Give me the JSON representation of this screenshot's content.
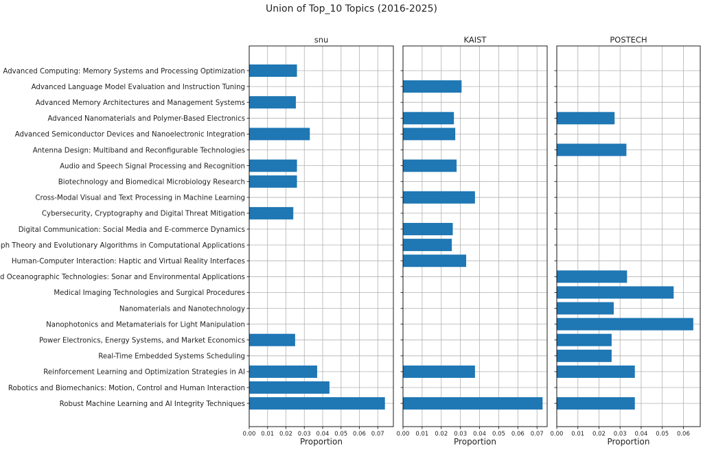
{
  "chart_data": {
    "type": "bar",
    "orientation": "horizontal",
    "title": "Union of Top_10 Topics (2016-2025)",
    "xlabel": "Proportion",
    "grid": true,
    "bar_color": "#1f77b4",
    "categories": [
      "Advanced Computing: Memory Systems and Processing Optimization",
      "Advanced Language Model Evaluation and Instruction Tuning",
      "Advanced Memory Architectures and Management Systems",
      "Advanced Nanomaterials and Polymer-Based Electronics",
      "Advanced Semiconductor Devices and Nanoelectronic Integration",
      "Antenna Design: Multiband and Reconfigurable Technologies",
      "Audio and Speech Signal Processing and Recognition",
      "Biotechnology and Biomedical Microbiology Research",
      "Cross-Modal Visual and Text Processing in Machine Learning",
      "Cybersecurity, Cryptography and Digital Threat Mitigation",
      "Digital Communication: Social Media and E-commerce Dynamics",
      "Graph Theory and Evolutionary Algorithms in Computational Applications",
      "Human-Computer Interaction: Haptic and Virtual Reality Interfaces",
      "Marine and Oceanographic Technologies: Sonar and Environmental Applications",
      "Medical Imaging Technologies and Surgical Procedures",
      "Nanomaterials and Nanotechnology",
      "Nanophotonics and Metamaterials for Light Manipulation",
      "Power Electronics, Energy Systems, and Market Economics",
      "Real-Time Embedded Systems Scheduling",
      "Reinforcement Learning and Optimization Strategies in AI",
      "Robotics and Biomechanics: Motion, Control and Human Interaction",
      "Robust Machine Learning and AI Integrity Techniques"
    ],
    "panels": [
      {
        "name": "snu",
        "xlim": [
          0,
          0.0785
        ],
        "ticks": [
          "0.00",
          "0.01",
          "0.02",
          "0.03",
          "0.04",
          "0.05",
          "0.06",
          "0.07"
        ],
        "values": [
          0.026,
          0,
          0.0254,
          0,
          0.033,
          0,
          0.026,
          0.026,
          0,
          0.024,
          0,
          0,
          0,
          0,
          0,
          0,
          0,
          0.025,
          0,
          0.037,
          0.0437,
          0.0739
        ]
      },
      {
        "name": "KAIST",
        "xlim": [
          0,
          0.0753
        ],
        "ticks": [
          "0.00",
          "0.01",
          "0.02",
          "0.03",
          "0.04",
          "0.05",
          "0.06",
          "0.07"
        ],
        "values": [
          0,
          0.0306,
          0,
          0.0266,
          0.0273,
          0,
          0.028,
          0,
          0.0376,
          0,
          0.026,
          0.0255,
          0.033,
          0,
          0,
          0,
          0,
          0,
          0,
          0.0376,
          0,
          0.0729
        ]
      },
      {
        "name": "POSTECH",
        "xlim": [
          0,
          0.068
        ],
        "ticks": [
          "0.00",
          "0.01",
          "0.02",
          "0.03",
          "0.04",
          "0.05",
          "0.06"
        ],
        "values": [
          0,
          0,
          0,
          0.0274,
          0,
          0.033,
          0,
          0,
          0,
          0,
          0,
          0,
          0,
          0.0333,
          0.0554,
          0.027,
          0.0647,
          0.026,
          0.026,
          0.037,
          0,
          0.037
        ]
      }
    ]
  }
}
